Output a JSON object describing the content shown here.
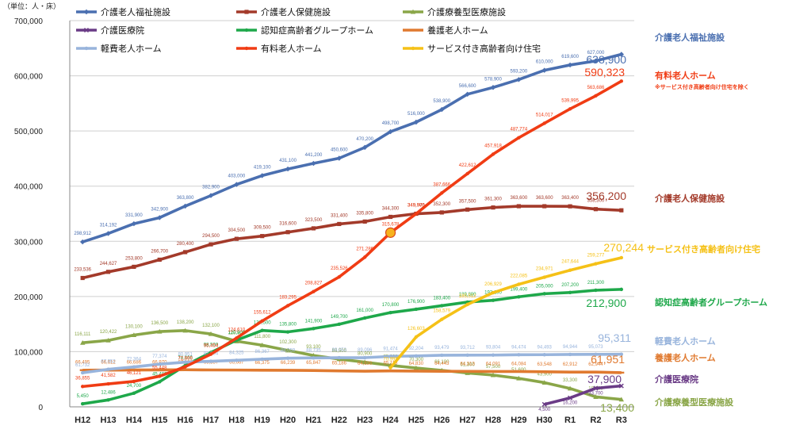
{
  "chart_data": {
    "type": "line",
    "unit_label": "（単位：人・床）",
    "ylim": [
      0,
      700000
    ],
    "yticks": [
      "0",
      "100,000",
      "200,000",
      "300,000",
      "400,000",
      "500,000",
      "600,000",
      "700,000"
    ],
    "ytick_values": [
      0,
      100000,
      200000,
      300000,
      400000,
      500000,
      600000,
      700000
    ],
    "categories": [
      "H12",
      "H13",
      "H14",
      "H15",
      "H16",
      "H17",
      "H18",
      "H19",
      "H20",
      "H21",
      "H22",
      "H23",
      "H24",
      "H25",
      "H26",
      "H27",
      "H28",
      "H29",
      "H30",
      "R1",
      "R2",
      "R3"
    ],
    "grid": true,
    "legend_placement": "top",
    "series": [
      {
        "name": "介護老人福祉施設",
        "color": "#4a6fb0",
        "marker": "diamond",
        "values": [
          298912,
          314192,
          331900,
          342900,
          363800,
          382900,
          403000,
          419100,
          431100,
          441200,
          450600,
          470200,
          498700,
          516000,
          538900,
          566600,
          578900,
          593200,
          610000,
          619600,
          627000,
          638900
        ],
        "labels": [
          "298,912",
          "314,192",
          "331,900",
          "342,900",
          "363,800",
          "382,900",
          "403,000",
          "419,100",
          "431,100",
          "441,200",
          "450,600",
          "470,200",
          "498,700",
          "516,000",
          "538,900",
          "566,600",
          "578,900",
          "593,200",
          "610,000",
          "619,600",
          "627,000",
          ""
        ],
        "end_value": "638,900",
        "end_name": "介護老人福祉施設"
      },
      {
        "name": "介護老人保健施設",
        "color": "#a33a2a",
        "marker": "square",
        "values": [
          233536,
          244627,
          253800,
          266700,
          280400,
          294500,
          304500,
          309500,
          316600,
          323500,
          331400,
          335800,
          344300,
          349975,
          352300,
          357500,
          361300,
          363600,
          363600,
          363400,
          358300,
          356200
        ],
        "labels": [
          "233,536",
          "244,627",
          "253,800",
          "266,700",
          "280,400",
          "294,500",
          "304,500",
          "309,500",
          "316,600",
          "323,500",
          "331,400",
          "335,800",
          "344,300",
          "349,975",
          "352,300",
          "357,500",
          "361,300",
          "363,600",
          "363,600",
          "363,400",
          "358,300",
          ""
        ],
        "end_value": "356,200",
        "end_name": "介護老人保健施設"
      },
      {
        "name": "介護療養型医療施設",
        "color": "#8aa648",
        "marker": "triangle",
        "values": [
          116111,
          120422,
          130100,
          136500,
          138200,
          132100,
          118900,
          111800,
          102300,
          93100,
          86500,
          80900,
          75200,
          70300,
          66100,
          61300,
          57500,
          51600,
          43900,
          33300,
          18000,
          13400
        ],
        "labels": [
          "116,111",
          "120,422",
          "130,100",
          "136,500",
          "138,200",
          "132,100",
          "118,900",
          "111,800",
          "102,300",
          "93,100",
          "86,500",
          "80,900",
          "75,200",
          "70,300",
          "66,100",
          "61,300",
          "57,500",
          "51,600",
          "43,900",
          "33,300",
          "18,000",
          ""
        ],
        "end_value": "13,400",
        "end_name": "介護療養型医療施設"
      },
      {
        "name": "介護医療院",
        "color": "#6a3b86",
        "marker": "x",
        "start_index": 18,
        "values": [
          null,
          null,
          null,
          null,
          null,
          null,
          null,
          null,
          null,
          null,
          null,
          null,
          null,
          null,
          null,
          null,
          null,
          null,
          4500,
          16200,
          33700,
          37900
        ],
        "labels": [
          "",
          "",
          "",
          "",
          "",
          "",
          "",
          "",
          "",
          "",
          "",
          "",
          "",
          "",
          "",
          "",
          "",
          "",
          "4,500",
          "16,200",
          "33,700",
          ""
        ],
        "end_value": "37,900",
        "end_name": "介護医療院"
      },
      {
        "name": "認知症高齢者グループホーム",
        "color": "#1ea84a",
        "marker": "dot",
        "values": [
          5450,
          12486,
          24700,
          45400,
          74800,
          98500,
          120900,
          138500,
          135800,
          141900,
          149700,
          161000,
          170800,
          176900,
          183400,
          189800,
          193100,
          199400,
          205000,
          207200,
          211300,
          212900
        ],
        "labels": [
          "5,450",
          "12,486",
          "24,700",
          "45,400",
          "74,800",
          "98,500",
          "120,900",
          "138,500",
          "135,800",
          "141,900",
          "149,700",
          "161,000",
          "170,800",
          "176,900",
          "183,400",
          "189,800",
          "193,100",
          "199,400",
          "205,000",
          "207,200",
          "211,300",
          ""
        ],
        "end_value": "212,900",
        "end_name": "認知症高齢者グループホーム"
      },
      {
        "name": "養護老人ホーム",
        "color": "#e07a30",
        "marker": "dash",
        "values": [
          66495,
          66612,
          66686,
          66970,
          67181,
          66837,
          66667,
          66375,
          66239,
          65847,
          65186,
          64630,
          65113,
          64830,
          64443,
          64313,
          64091,
          64084,
          63548,
          62912,
          62944,
          61951
        ],
        "labels": [
          "66,495",
          "66,612",
          "66,686",
          "66,970",
          "67,181",
          "66,837",
          "66,667",
          "66,375",
          "66,239",
          "65,847",
          "65,186",
          "64,630",
          "65,113",
          "64,830",
          "64,443",
          "64,313",
          "64,091",
          "64,084",
          "63,548",
          "62,912",
          "62,944",
          ""
        ],
        "end_value": "61,951",
        "end_name": "養護老人ホーム"
      },
      {
        "name": "軽費老人ホーム",
        "color": "#98b4dc",
        "marker": "dot",
        "values": [
          61732,
          67952,
          72364,
          77374,
          80951,
          82594,
          84325,
          86367,
          88059,
          88735,
          89053,
          89096,
          91474,
          92204,
          93479,
          93712,
          93804,
          94474,
          94493,
          94944,
          95073,
          95311
        ],
        "labels": [
          "61,732",
          "67,952",
          "72,364",
          "77,374",
          "80,951",
          "82,594",
          "84,325",
          "86,367",
          "88,059",
          "88,735",
          "89,053",
          "89,096",
          "91,474",
          "92,204",
          "93,479",
          "93,712",
          "93,804",
          "94,474",
          "94,493",
          "94,944",
          "95,073",
          ""
        ],
        "end_value": "95,311",
        "end_name": "軽費老人ホーム"
      },
      {
        "name": "有料老人ホーム",
        "color": "#f03c14",
        "marker": "dot",
        "values": [
          36855,
          41582,
          46121,
          55448,
          72666,
          95454,
          124610,
          155612,
          183295,
          208827,
          235526,
          271286,
          315678,
          349900,
          387666,
          422612,
          457918,
          487774,
          514017,
          539995,
          563686,
          590323
        ],
        "labels": [
          "36,855",
          "41,582",
          "46,121",
          "55,448",
          "72,666",
          "95,454",
          "124,610",
          "155,612",
          "183,295",
          "208,827",
          "235,526",
          "271,286",
          "315,678",
          "349,900",
          "387,666",
          "422,612",
          "457,918",
          "487,774",
          "514,017",
          "539,995",
          "563,686",
          ""
        ],
        "end_value": "590,323",
        "end_name": "有料老人ホーム",
        "end_note": "※サービス付き高齢者向け住宅を除く"
      },
      {
        "name": "サービス付き高齢者向け住宅",
        "color": "#f5c117",
        "marker": "dot",
        "values": [
          null,
          null,
          null,
          null,
          null,
          null,
          null,
          null,
          null,
          null,
          null,
          null,
          70999,
          126603,
          158579,
          185512,
          206929,
          222085,
          234971,
          247644,
          259277,
          270244
        ],
        "labels": [
          "",
          "",
          "",
          "",
          "",
          "",
          "",
          "",
          "",
          "",
          "",
          "",
          "70,999",
          "126,603",
          "158,579",
          "185,512",
          "206,929",
          "222,085",
          "234,971",
          "247,644",
          "259,277",
          ""
        ],
        "end_value": "270,244",
        "end_name": "サービス付き高齢者向け住宅"
      }
    ]
  }
}
